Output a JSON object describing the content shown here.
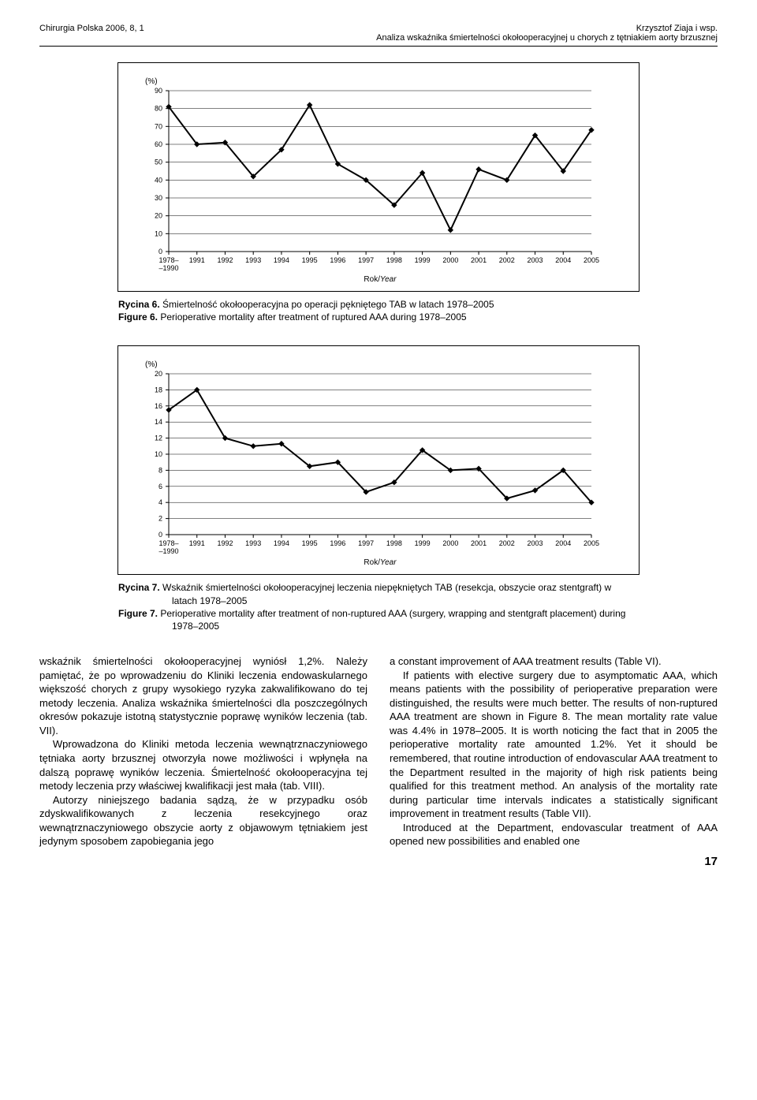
{
  "header": {
    "journal": "Chirurgia Polska 2006, 8, 1",
    "author": "Krzysztof Ziaja i wsp.",
    "title": "Analiza wskaźnika śmiertelności okołooperacyjnej u chorych z tętniakiem aorty brzusznej"
  },
  "chart6": {
    "type": "line",
    "ylabel": "(%)",
    "xlabel_main": "Rok/",
    "xlabel_italic": "Year",
    "xlim": [
      0,
      15
    ],
    "ylim": [
      0,
      90
    ],
    "ytick_step": 10,
    "yticks": [
      0,
      10,
      20,
      30,
      40,
      50,
      60,
      70,
      80,
      90
    ],
    "xticks": [
      "1978–\n–1990",
      "1991",
      "1992",
      "1993",
      "1994",
      "1995",
      "1996",
      "1997",
      "1998",
      "1999",
      "2000",
      "2001",
      "2002",
      "2003",
      "2004",
      "2005"
    ],
    "values": [
      81,
      60,
      61,
      42,
      57,
      82,
      49,
      40,
      26,
      44,
      12,
      46,
      40,
      65,
      45,
      68
    ],
    "line_color": "#000000",
    "marker_color": "#000000",
    "marker_shape": "diamond",
    "marker_size": 6,
    "line_width": 2,
    "grid_color": "#000000",
    "background_color": "#ffffff",
    "tick_fontsize": 9
  },
  "caption6": {
    "pl_label": "Rycina 6.",
    "pl_text": " Śmiertelność okołooperacyjna po operacji pękniętego TAB w latach 1978–2005",
    "en_label": "Figure 6.",
    "en_text": " Perioperative mortality after treatment of ruptured AAA during 1978–2005"
  },
  "chart7": {
    "type": "line",
    "ylabel": "(%)",
    "xlabel_main": "Rok/",
    "xlabel_italic": "Year",
    "xlim": [
      0,
      15
    ],
    "ylim": [
      0,
      20
    ],
    "ytick_step": 2,
    "yticks": [
      0,
      2,
      4,
      6,
      8,
      10,
      12,
      14,
      16,
      18,
      20
    ],
    "xticks": [
      "1978–\n–1990",
      "1991",
      "1992",
      "1993",
      "1994",
      "1995",
      "1996",
      "1997",
      "1998",
      "1999",
      "2000",
      "2001",
      "2002",
      "2003",
      "2004",
      "2005"
    ],
    "values": [
      15.5,
      18,
      12,
      11,
      11.3,
      8.5,
      9,
      5.3,
      6.5,
      10.5,
      8,
      8.2,
      4.5,
      5.5,
      8,
      4
    ],
    "line_color": "#000000",
    "marker_color": "#000000",
    "marker_shape": "diamond",
    "marker_size": 6,
    "line_width": 2,
    "grid_color": "#000000",
    "background_color": "#ffffff",
    "tick_fontsize": 9
  },
  "caption7": {
    "pl_label": "Rycina 7.",
    "pl_text": " Wskaźnik śmiertelności okołooperacyjnej leczenia niepękniętych TAB (resekcja, obszycie oraz stentgraft) w latach 1978–2005",
    "en_label": "Figure 7.",
    "en_text": " Perioperative mortality after treatment of non-ruptured AAA (surgery, wrapping and stentgraft placement) during 1978–2005"
  },
  "body": {
    "left": [
      "wskaźnik śmiertelności okołooperacyjnej wyniósł 1,2%. Należy pamiętać, że po wprowadzeniu do Kliniki leczenia endowaskularnego większość chorych z grupy wysokiego ryzyka zakwalifikowano do tej metody leczenia. Analiza wskaźnika śmiertelności dla poszczególnych okresów pokazuje istotną statystycznie poprawę wyników leczenia (tab. VII).",
      "Wprowadzona do Kliniki metoda leczenia wewnątrznaczyniowego tętniaka aorty brzusznej otworzyła nowe możliwości i wpłynęła na dalszą poprawę wyników leczenia. Śmiertelność okołooperacyjna tej metody leczenia przy właściwej kwalifikacji jest mała (tab. VIII).",
      "Autorzy niniejszego badania sądzą, że w przypadku osób zdyskwalifikowanych z leczenia resekcyjnego oraz wewnątrznaczyniowego obszycie aorty z objawowym tętniakiem jest jedynym sposobem zapobiegania jego"
    ],
    "right": [
      "a constant improvement of AAA treatment results (Table VI).",
      "If patients with elective surgery due to asymptomatic AAA, which means patients with the possibility of perioperative preparation were distinguished, the results were much better. The results of non-ruptured AAA treatment are shown in Figure 8. The mean mortality rate value was 4.4% in 1978–2005. It is worth noticing the fact that in 2005 the perioperative mortality rate amounted 1.2%. Yet it should be remembered, that routine introduction of endovascular AAA treatment to the Department resulted in the majority of high risk patients being qualified for this treatment method. An analysis of the mortality rate during particular time intervals indicates a statistically significant improvement in treatment results (Table VII).",
      "Introduced at the Department, endovascular treatment of AAA opened new possibilities and enabled one"
    ]
  },
  "page_number": "17"
}
